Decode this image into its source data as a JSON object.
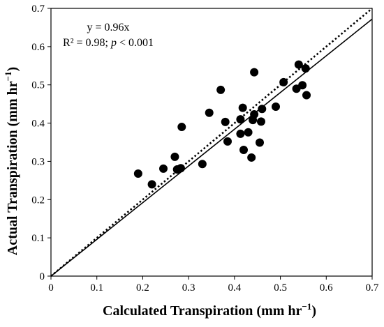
{
  "chart_data": {
    "type": "scatter",
    "title": "",
    "xlabel": "Calculated Transpiration (mm hr",
    "xlabel_sup": "−1",
    "xlabel_end": ")",
    "ylabel": "Actual Transpiration (mm hr",
    "ylabel_sup": "−1",
    "ylabel_end": ")",
    "xlim": [
      0,
      0.7
    ],
    "ylim": [
      0,
      0.7
    ],
    "xticks": [
      "0",
      "0.1",
      "0.2",
      "0.3",
      "0.4",
      "0.5",
      "0.6",
      "0.7"
    ],
    "yticks": [
      "0",
      "0.1",
      "0.2",
      "0.3",
      "0.4",
      "0.5",
      "0.6",
      "0.7"
    ],
    "grid": false,
    "annotation": {
      "line1": "y = 0.96x",
      "r2": "R² = 0.98; ",
      "p_italic": "p",
      "p_rest": " < 0.001"
    },
    "lines": [
      {
        "style": "solid",
        "slope": 0.96
      },
      {
        "style": "dotted",
        "slope": 1.0
      }
    ],
    "points": [
      [
        0.19,
        0.268
      ],
      [
        0.22,
        0.24
      ],
      [
        0.245,
        0.281
      ],
      [
        0.27,
        0.312
      ],
      [
        0.275,
        0.279
      ],
      [
        0.283,
        0.282
      ],
      [
        0.285,
        0.39
      ],
      [
        0.33,
        0.293
      ],
      [
        0.345,
        0.427
      ],
      [
        0.37,
        0.487
      ],
      [
        0.38,
        0.403
      ],
      [
        0.385,
        0.352
      ],
      [
        0.413,
        0.41
      ],
      [
        0.413,
        0.372
      ],
      [
        0.418,
        0.44
      ],
      [
        0.42,
        0.33
      ],
      [
        0.43,
        0.376
      ],
      [
        0.437,
        0.31
      ],
      [
        0.44,
        0.408
      ],
      [
        0.443,
        0.423
      ],
      [
        0.443,
        0.533
      ],
      [
        0.455,
        0.349
      ],
      [
        0.458,
        0.404
      ],
      [
        0.46,
        0.437
      ],
      [
        0.49,
        0.443
      ],
      [
        0.507,
        0.507
      ],
      [
        0.535,
        0.49
      ],
      [
        0.54,
        0.553
      ],
      [
        0.548,
        0.499
      ],
      [
        0.555,
        0.543
      ],
      [
        0.557,
        0.473
      ]
    ]
  }
}
